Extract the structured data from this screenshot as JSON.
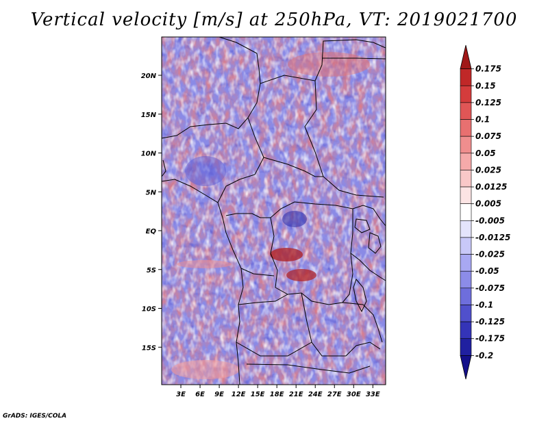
{
  "title": "Vertical velocity [m/s] at 250hPa, VT: 2019021700",
  "credit": "GrADS: IGES/COLA",
  "map": {
    "lon_range": [
      0,
      35
    ],
    "lat_range": [
      -20,
      24
    ],
    "lon_ticks": [
      {
        "value": 3,
        "label": "3E"
      },
      {
        "value": 6,
        "label": "6E"
      },
      {
        "value": 9,
        "label": "9E"
      },
      {
        "value": 12,
        "label": "12E"
      },
      {
        "value": 15,
        "label": "15E"
      },
      {
        "value": 18,
        "label": "18E"
      },
      {
        "value": 21,
        "label": "21E"
      },
      {
        "value": 24,
        "label": "24E"
      },
      {
        "value": 27,
        "label": "27E"
      },
      {
        "value": 30,
        "label": "30E"
      },
      {
        "value": 33,
        "label": "33E"
      }
    ],
    "lat_ticks": [
      {
        "value": 20,
        "label": "20N"
      },
      {
        "value": 15,
        "label": "15N"
      },
      {
        "value": 10,
        "label": "10N"
      },
      {
        "value": 5,
        "label": "5N"
      },
      {
        "value": 0,
        "label": "EQ"
      },
      {
        "value": -5,
        "label": "5S"
      },
      {
        "value": -10,
        "label": "10S"
      },
      {
        "value": -15,
        "label": "15S"
      }
    ]
  },
  "colorbar": {
    "labels": [
      "0.175",
      "0.15",
      "0.125",
      "0.1",
      "0.075",
      "0.05",
      "0.025",
      "0.0125",
      "0.005",
      "-0.005",
      "-0.0125",
      "-0.025",
      "-0.05",
      "-0.075",
      "-0.1",
      "-0.125",
      "-0.175",
      "-0.2"
    ],
    "colors": [
      "#a01818",
      "#c02828",
      "#d43c3c",
      "#e05656",
      "#e87070",
      "#ef8e8e",
      "#f5aaaa",
      "#f9c8c8",
      "#fce4e4",
      "#ffffff",
      "#e4e4fc",
      "#c8c8f8",
      "#a8a8f2",
      "#8c8ce8",
      "#6e6edc",
      "#5050cc",
      "#3434b8",
      "#2020a0",
      "#14108a"
    ]
  },
  "palette": {
    "neg": "#7070e8",
    "pos": "#e87070",
    "border": "#000000"
  }
}
